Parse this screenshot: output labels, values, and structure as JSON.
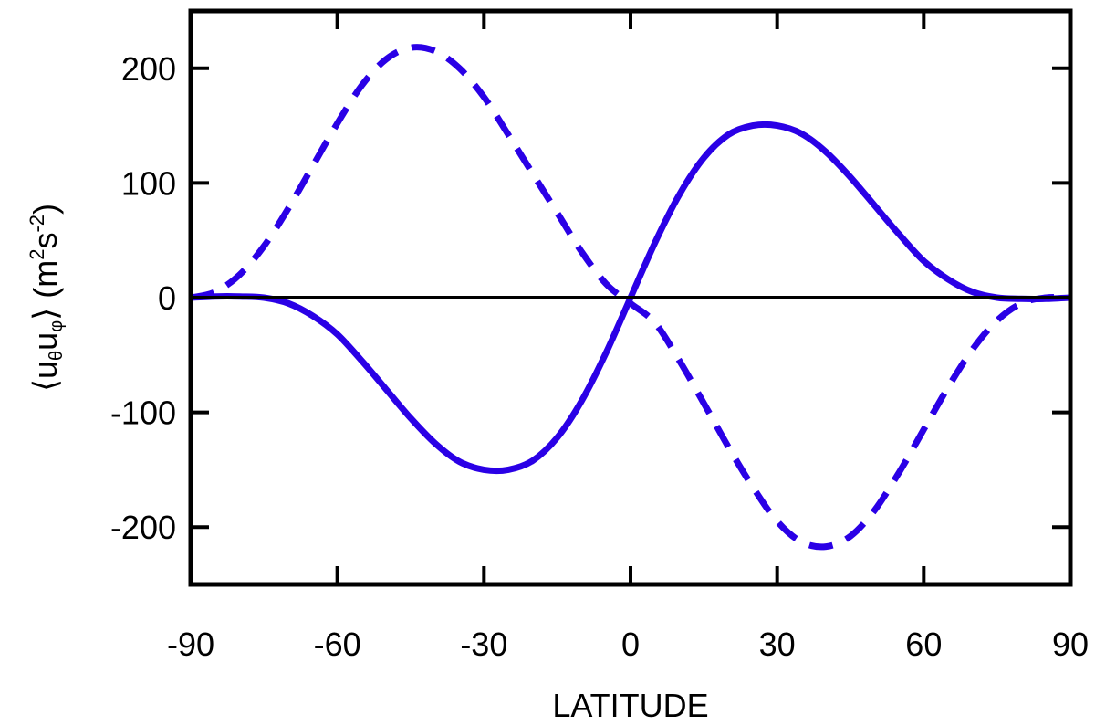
{
  "chart_data": {
    "type": "line",
    "xlabel": "LATITUDE",
    "ylabel": {
      "open_bracket": "⟨",
      "u1": "u",
      "sub1": "θ",
      "u2": "u",
      "sub2": "φ",
      "close_bracket": "⟩",
      "units_open": " (m",
      "exp1": "2",
      "units_mid": "s",
      "exp2": "-2",
      "units_close": ")"
    },
    "xlim": [
      -90,
      90
    ],
    "ylim": [
      -250,
      250
    ],
    "xticks": [
      -90,
      -60,
      -30,
      0,
      30,
      60,
      90
    ],
    "yticks": [
      -200,
      -100,
      0,
      100,
      200
    ],
    "grid": false,
    "zero_line": true,
    "colors": {
      "series": "#2a00e6",
      "axes": "#000000"
    },
    "series": [
      {
        "style": "solid",
        "x": [
          -90,
          -85,
          -80,
          -75,
          -70,
          -65,
          -60,
          -55,
          -50,
          -45,
          -40,
          -35,
          -30,
          -25,
          -20,
          -15,
          -10,
          -5,
          0,
          5,
          10,
          15,
          20,
          25,
          30,
          35,
          40,
          45,
          50,
          55,
          60,
          65,
          70,
          75,
          80,
          85,
          90
        ],
        "values": [
          0,
          1,
          1,
          0,
          -5,
          -16,
          -32,
          -55,
          -80,
          -105,
          -127,
          -143,
          -150,
          -150,
          -142,
          -122,
          -90,
          -48,
          0,
          48,
          90,
          122,
          142,
          150,
          150,
          143,
          127,
          105,
          80,
          55,
          32,
          16,
          5,
          0,
          -1,
          -1,
          0
        ]
      },
      {
        "style": "dashed",
        "x": [
          -90,
          -85,
          -80,
          -75,
          -70,
          -65,
          -60,
          -55,
          -50,
          -45,
          -40,
          -35,
          -30,
          -25,
          -20,
          -15,
          -10,
          -5,
          0,
          5,
          10,
          15,
          20,
          25,
          30,
          35,
          40,
          45,
          50,
          55,
          60,
          65,
          70,
          75,
          80,
          85,
          90
        ],
        "values": [
          0,
          5,
          20,
          45,
          78,
          115,
          152,
          185,
          208,
          218,
          215,
          200,
          175,
          142,
          108,
          74,
          40,
          12,
          -5,
          -22,
          -55,
          -92,
          -130,
          -165,
          -195,
          -213,
          -217,
          -208,
          -185,
          -152,
          -115,
          -78,
          -45,
          -20,
          -5,
          0,
          0
        ]
      }
    ]
  }
}
